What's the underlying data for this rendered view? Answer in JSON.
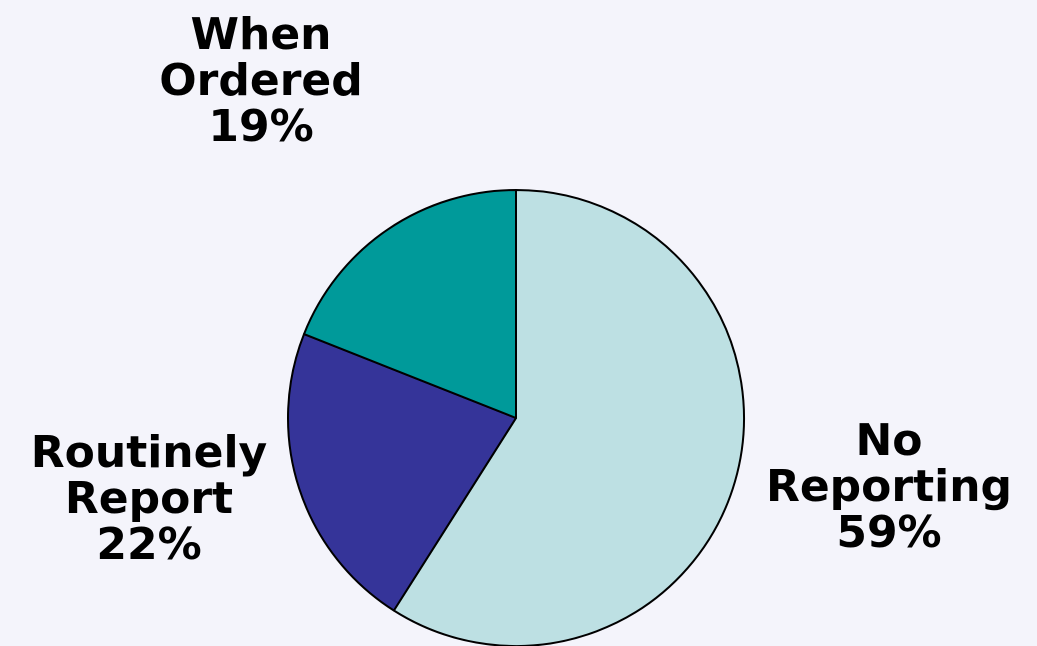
{
  "chart_data": {
    "type": "pie",
    "slices": [
      {
        "name": "No Reporting",
        "label_lines": [
          "No",
          "Reporting"
        ],
        "value": 59,
        "value_label": "59%",
        "color": "#bde0e3"
      },
      {
        "name": "Routinely Report",
        "label_lines": [
          "Routinely",
          "Report"
        ],
        "value": 22,
        "value_label": "22%",
        "color": "#353499"
      },
      {
        "name": "When Ordered",
        "label_lines": [
          "When",
          "Ordered"
        ],
        "value": 19,
        "value_label": "19%",
        "color": "#009a9a"
      }
    ],
    "start_angle": "12 o'clock",
    "direction": "clockwise",
    "legend": "none"
  }
}
